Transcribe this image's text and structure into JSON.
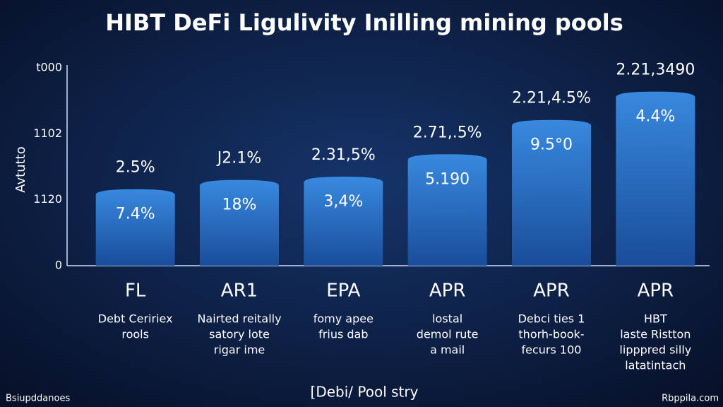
{
  "chart_data": {
    "type": "bar",
    "title": "HIBT DeFi Ligulivity Inilling mining pools",
    "y_label": "Avtutto",
    "y_axis_texts": [
      "0",
      "1120",
      "1102",
      "t000"
    ],
    "ylim": [
      0,
      3
    ],
    "categories": [
      "FL",
      "AR1",
      "EPA",
      "APR",
      "APR",
      "APR"
    ],
    "values": [
      1.16,
      1.3,
      1.35,
      1.69,
      2.21,
      2.64
    ],
    "top_labels": [
      "2.5%",
      "J2.1%",
      "2.31,5%",
      "2.71,.5%",
      "2.21,4.5%",
      "2.21,3490"
    ],
    "bar_labels": [
      "7.4%",
      "18%",
      "3,4%",
      "5.190",
      "9.5°0",
      "4.4%"
    ],
    "sublabels": [
      [
        "Debt Ceririex",
        "rools"
      ],
      [
        "Nairted reitally",
        "satory lote",
        "rigar ime"
      ],
      [
        "fomy apee",
        "frius dab"
      ],
      [
        "lostal",
        "demol rute",
        "a mail"
      ],
      [
        "Debci ties 1",
        "thorh-book-",
        "fecurs 100"
      ],
      [
        "HBT",
        "laste Ristton",
        "lipppred silly",
        "latatintach"
      ]
    ],
    "color": "#2f7fd6",
    "x_label": "[Debi/ Pool stry",
    "footer_left": "Bsiupddanoes",
    "footer_right": "Rbppila.com"
  }
}
